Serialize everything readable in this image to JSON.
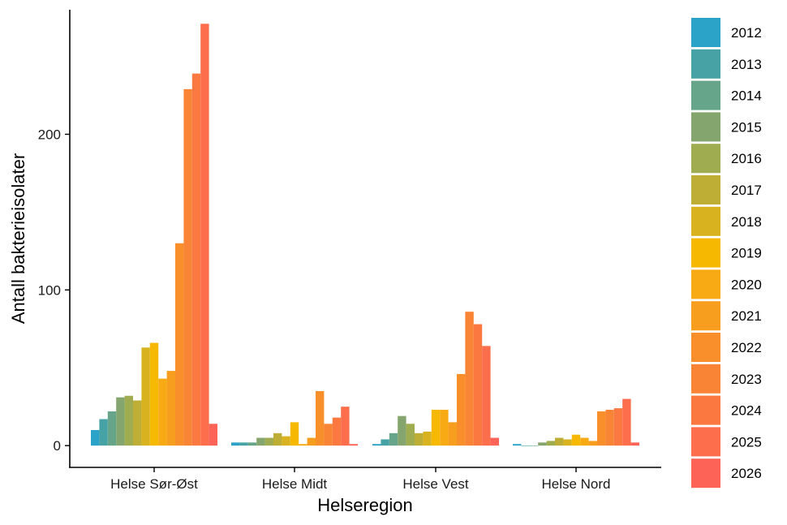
{
  "chart_data": {
    "type": "bar",
    "title": "",
    "xlabel": "Helseregion",
    "ylabel": "Antall bakterieisolater",
    "ylim": [
      -14,
      280
    ],
    "yticks": [
      0,
      100,
      200
    ],
    "grid": false,
    "legend_position": "right",
    "categories": [
      "Helse Sør-Øst",
      "Helse Midt",
      "Helse Vest",
      "Helse Nord"
    ],
    "series": [
      {
        "name": "2012",
        "color": "#2BA3C8",
        "values": [
          10,
          2,
          1,
          1
        ]
      },
      {
        "name": "2013",
        "color": "#47A2A6",
        "values": [
          17,
          2,
          4,
          0
        ]
      },
      {
        "name": "2014",
        "color": "#66A589",
        "values": [
          22,
          2,
          8,
          0
        ]
      },
      {
        "name": "2015",
        "color": "#84A56E",
        "values": [
          31,
          5,
          19,
          2
        ]
      },
      {
        "name": "2016",
        "color": "#A0AC50",
        "values": [
          32,
          5,
          14,
          3
        ]
      },
      {
        "name": "2017",
        "color": "#BEAE36",
        "values": [
          29,
          8,
          8,
          5
        ]
      },
      {
        "name": "2018",
        "color": "#D9B31F",
        "values": [
          63,
          6,
          9,
          4
        ]
      },
      {
        "name": "2019",
        "color": "#F6B800",
        "values": [
          66,
          15,
          23,
          7
        ]
      },
      {
        "name": "2020",
        "color": "#F7AA14",
        "values": [
          43,
          1,
          23,
          5
        ]
      },
      {
        "name": "2021",
        "color": "#F89E1E",
        "values": [
          48,
          5,
          15,
          3
        ]
      },
      {
        "name": "2022",
        "color": "#F98F2A",
        "values": [
          130,
          35,
          46,
          22
        ]
      },
      {
        "name": "2023",
        "color": "#FA8435",
        "values": [
          229,
          14,
          86,
          23
        ]
      },
      {
        "name": "2024",
        "color": "#FB7940",
        "values": [
          239,
          18,
          78,
          24
        ]
      },
      {
        "name": "2025",
        "color": "#FC6E4C",
        "values": [
          271,
          25,
          64,
          30
        ]
      },
      {
        "name": "2026",
        "color": "#FE6358",
        "values": [
          14,
          1,
          5,
          2
        ]
      }
    ]
  }
}
